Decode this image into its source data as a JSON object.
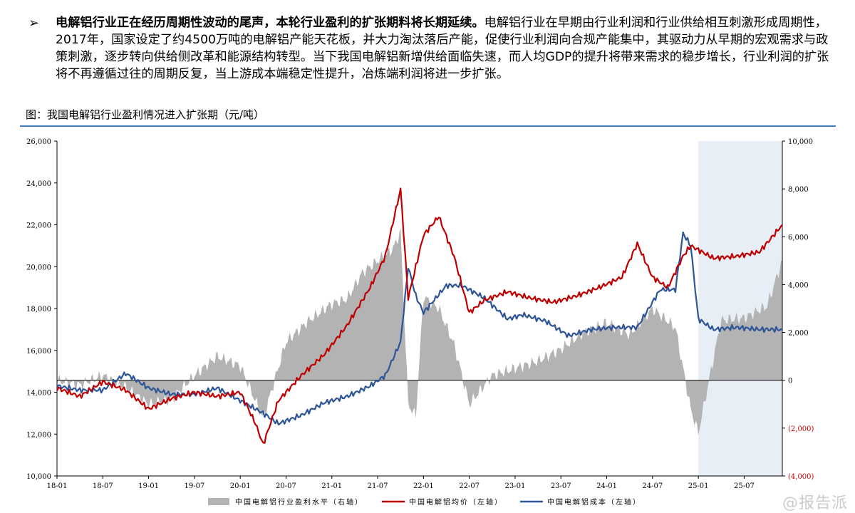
{
  "text": {
    "bullet_symbol": "➢",
    "bullet_bold": "电解铝行业正在经历周期性波动的尾声，本轮行业盈利的扩张期料将长期延续。",
    "bullet_body": "电解铝行业在早期由行业利润和行业供给相互刺激形成周期性，2017年，国家设定了约4500万吨的电解铝产能天花板，并大力淘汰落后产能，促使行业利润向合规产能集中，其驱动力从早期的宏观需求与政策刺激，逐步转向供给侧改革和能源结构转型。当下我国电解铝新增供给面临失速，而人均GDP的提升将带来需求的稳步增长，行业利润的扩张将不再遵循过往的周期反复，当上游成本端稳定性提升，冶炼端利润将进一步扩张。",
    "figure_caption": "图：我国电解铝行业盈利情况进入扩张期（元/吨）",
    "watermark": "@报告派"
  },
  "colors": {
    "rule": "#3f7cc0",
    "profit_area": "#b3b3b3",
    "price_line": "#c00000",
    "cost_line": "#2e5597",
    "shade_region": "#e8eef6",
    "negative_tick_color": "#c00000"
  },
  "chart_data": {
    "type": "line",
    "x_axis": {
      "range": [
        "2018-01",
        "2025-12"
      ],
      "tick_labels": [
        "18-01",
        "18-07",
        "19-01",
        "19-07",
        "20-01",
        "20-07",
        "21-01",
        "21-07",
        "22-01",
        "22-07",
        "23-01",
        "23-07",
        "24-01",
        "24-07",
        "25-01",
        "25-07"
      ]
    },
    "y_left": {
      "range": [
        10000,
        26000
      ],
      "step": 2000,
      "tick_labels": [
        "10,000",
        "12,000",
        "14,000",
        "16,000",
        "18,000",
        "20,000",
        "22,000",
        "24,000",
        "26,000"
      ]
    },
    "y_right": {
      "range": [
        -4000,
        10000
      ],
      "step": 2000,
      "tick_labels": [
        "(4,000)",
        "(2,000)",
        "0",
        "2,000",
        "4,000",
        "6,000",
        "8,000",
        "10,000"
      ]
    },
    "shaded_period": [
      "2025-01",
      "2025-12"
    ],
    "series": [
      {
        "name": "中国电解铝行业盈利水平（右轴）",
        "axis": "right",
        "style": "area",
        "x": [
          "2018-01",
          "2018-04",
          "2018-07",
          "2018-10",
          "2019-01",
          "2019-04",
          "2019-07",
          "2019-10",
          "2020-01",
          "2020-04",
          "2020-07",
          "2020-10",
          "2021-01",
          "2021-03",
          "2021-05",
          "2021-07",
          "2021-09",
          "2021-10",
          "2021-11",
          "2021-12",
          "2022-01",
          "2022-03",
          "2022-05",
          "2022-07",
          "2022-10",
          "2023-01",
          "2023-04",
          "2023-07",
          "2023-10",
          "2024-01",
          "2024-04",
          "2024-07",
          "2024-10",
          "2024-12",
          "2025-01",
          "2025-04",
          "2025-07",
          "2025-10",
          "2025-12"
        ],
        "values": [
          0,
          -200,
          200,
          -300,
          -1000,
          -800,
          200,
          1000,
          600,
          -1600,
          1600,
          2500,
          3200,
          3400,
          4500,
          5000,
          5500,
          6200,
          -1000,
          -1500,
          3500,
          3000,
          1500,
          -1000,
          200,
          500,
          800,
          1300,
          2000,
          2400,
          1900,
          3000,
          2200,
          -1200,
          -2200,
          2500,
          2600,
          3100,
          5000
        ]
      },
      {
        "name": "中国电解铝均价（左轴）",
        "axis": "left",
        "style": "line",
        "x": [
          "2018-01",
          "2018-04",
          "2018-07",
          "2018-10",
          "2019-01",
          "2019-04",
          "2019-07",
          "2019-10",
          "2020-01",
          "2020-03",
          "2020-04",
          "2020-06",
          "2020-09",
          "2020-12",
          "2021-03",
          "2021-06",
          "2021-08",
          "2021-10",
          "2021-11",
          "2022-01",
          "2022-03",
          "2022-05",
          "2022-07",
          "2022-09",
          "2022-12",
          "2023-03",
          "2023-06",
          "2023-09",
          "2023-12",
          "2024-03",
          "2024-05",
          "2024-07",
          "2024-09",
          "2024-11",
          "2024-12",
          "2025-03",
          "2025-06",
          "2025-09",
          "2025-12"
        ],
        "values": [
          14200,
          13800,
          14500,
          14100,
          13200,
          13700,
          14000,
          13800,
          14000,
          12500,
          11500,
          13600,
          14800,
          15800,
          17200,
          19000,
          20500,
          23700,
          18500,
          21500,
          22400,
          20500,
          17800,
          18400,
          18800,
          18500,
          18300,
          18600,
          19000,
          19500,
          21100,
          19500,
          19000,
          20500,
          21000,
          20400,
          20500,
          20700,
          22000
        ]
      },
      {
        "name": "中国电解铝成本（左轴）",
        "axis": "left",
        "style": "line",
        "x": [
          "2018-01",
          "2018-04",
          "2018-07",
          "2018-10",
          "2019-01",
          "2019-04",
          "2019-07",
          "2019-10",
          "2020-01",
          "2020-04",
          "2020-06",
          "2020-09",
          "2020-12",
          "2021-03",
          "2021-06",
          "2021-08",
          "2021-10",
          "2021-11",
          "2021-12",
          "2022-01",
          "2022-04",
          "2022-06",
          "2022-09",
          "2022-12",
          "2023-02",
          "2023-05",
          "2023-08",
          "2023-11",
          "2024-02",
          "2024-05",
          "2024-08",
          "2024-10",
          "2024-11",
          "2024-12",
          "2025-01",
          "2025-03",
          "2025-06",
          "2025-09",
          "2025-12"
        ],
        "values": [
          14300,
          14100,
          14100,
          14900,
          14200,
          13900,
          13900,
          14200,
          13600,
          13000,
          12500,
          12900,
          13500,
          13800,
          14300,
          14800,
          16400,
          20000,
          18600,
          17800,
          19100,
          19100,
          18500,
          17500,
          17700,
          17400,
          16700,
          17000,
          17100,
          17100,
          18900,
          18900,
          21600,
          21000,
          17500,
          17000,
          17100,
          17000,
          17000
        ]
      }
    ]
  }
}
